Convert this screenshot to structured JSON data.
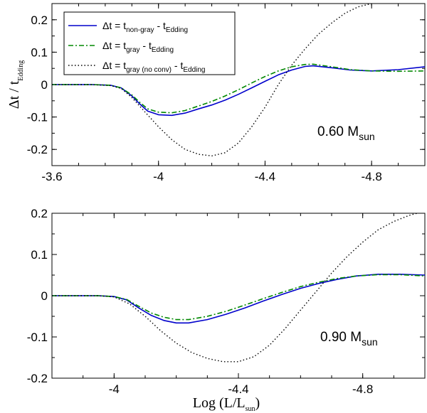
{
  "chart_data": [
    {
      "type": "line",
      "panel": "top",
      "annotation": {
        "main": "0.60 M",
        "sub": "sun"
      },
      "ylabel": {
        "main": "Δt / t",
        "sub": "Edding"
      },
      "xlim": [
        -3.6,
        -5.0
      ],
      "ylim": [
        -0.25,
        0.25
      ],
      "xticks": [
        -3.6,
        -4.0,
        -4.4,
        -4.8
      ],
      "xtick_labels": [
        "-3.6",
        "-4",
        "-4.4",
        "-4.8"
      ],
      "yticks": [
        -0.2,
        -0.1,
        0,
        0.1,
        0.2
      ],
      "ytick_labels": [
        "-0.2",
        "-0.1",
        "0",
        "0.1",
        "0.2"
      ],
      "legend": {
        "position": "top-left",
        "entries": [
          {
            "prefix": "Δt = t",
            "sub1": "non-gray",
            "mid": " - t",
            "sub2": "Edding",
            "color": "#0000cc",
            "style": "solid"
          },
          {
            "prefix": "Δt = t",
            "sub1": "gray",
            "mid": " - t",
            "sub2": "Edding",
            "color": "#008800",
            "style": "dashdot"
          },
          {
            "prefix": "Δt = t",
            "sub1": "gray (no conv)",
            "mid": " - t",
            "sub2": "Edding",
            "color": "#000000",
            "style": "dotted"
          }
        ]
      },
      "series": [
        {
          "name": "non-gray",
          "color": "#0000cc",
          "style": "solid",
          "points": [
            [
              -3.6,
              0
            ],
            [
              -3.75,
              0
            ],
            [
              -3.82,
              -0.002
            ],
            [
              -3.86,
              -0.01
            ],
            [
              -3.9,
              -0.035
            ],
            [
              -3.93,
              -0.06
            ],
            [
              -3.96,
              -0.082
            ],
            [
              -4.0,
              -0.093
            ],
            [
              -4.05,
              -0.095
            ],
            [
              -4.1,
              -0.088
            ],
            [
              -4.15,
              -0.075
            ],
            [
              -4.2,
              -0.063
            ],
            [
              -4.25,
              -0.048
            ],
            [
              -4.3,
              -0.03
            ],
            [
              -4.35,
              -0.01
            ],
            [
              -4.4,
              0.01
            ],
            [
              -4.45,
              0.03
            ],
            [
              -4.5,
              0.045
            ],
            [
              -4.55,
              0.056
            ],
            [
              -4.58,
              0.058
            ],
            [
              -4.65,
              0.052
            ],
            [
              -4.72,
              0.045
            ],
            [
              -4.8,
              0.042
            ],
            [
              -4.9,
              0.046
            ],
            [
              -5.0,
              0.055
            ]
          ]
        },
        {
          "name": "gray",
          "color": "#008800",
          "style": "dashdot",
          "points": [
            [
              -3.6,
              0
            ],
            [
              -3.75,
              0
            ],
            [
              -3.82,
              -0.002
            ],
            [
              -3.86,
              -0.01
            ],
            [
              -3.9,
              -0.032
            ],
            [
              -3.93,
              -0.055
            ],
            [
              -3.96,
              -0.075
            ],
            [
              -4.0,
              -0.085
            ],
            [
              -4.05,
              -0.087
            ],
            [
              -4.1,
              -0.08
            ],
            [
              -4.15,
              -0.066
            ],
            [
              -4.2,
              -0.052
            ],
            [
              -4.25,
              -0.035
            ],
            [
              -4.3,
              -0.016
            ],
            [
              -4.35,
              0.005
            ],
            [
              -4.4,
              0.025
            ],
            [
              -4.45,
              0.042
            ],
            [
              -4.5,
              0.055
            ],
            [
              -4.55,
              0.062
            ],
            [
              -4.58,
              0.063
            ],
            [
              -4.65,
              0.055
            ],
            [
              -4.72,
              0.046
            ],
            [
              -4.8,
              0.042
            ],
            [
              -4.9,
              0.041
            ],
            [
              -5.0,
              0.042
            ]
          ]
        },
        {
          "name": "gray (no conv)",
          "color": "#000000",
          "style": "dotted",
          "points": [
            [
              -3.6,
              0
            ],
            [
              -3.75,
              0
            ],
            [
              -3.82,
              -0.003
            ],
            [
              -3.86,
              -0.012
            ],
            [
              -3.9,
              -0.04
            ],
            [
              -3.95,
              -0.085
            ],
            [
              -4.0,
              -0.13
            ],
            [
              -4.05,
              -0.17
            ],
            [
              -4.1,
              -0.2
            ],
            [
              -4.15,
              -0.215
            ],
            [
              -4.2,
              -0.22
            ],
            [
              -4.25,
              -0.21
            ],
            [
              -4.3,
              -0.18
            ],
            [
              -4.35,
              -0.13
            ],
            [
              -4.4,
              -0.07
            ],
            [
              -4.45,
              0.0
            ],
            [
              -4.5,
              0.06
            ],
            [
              -4.55,
              0.11
            ],
            [
              -4.6,
              0.155
            ],
            [
              -4.65,
              0.19
            ],
            [
              -4.7,
              0.22
            ],
            [
              -4.75,
              0.24
            ],
            [
              -4.8,
              0.25
            ]
          ]
        }
      ]
    },
    {
      "type": "line",
      "panel": "bottom",
      "annotation": {
        "main": "0.90 M",
        "sub": "sun"
      },
      "xlabel": {
        "main": "Log (L/L",
        "sub": "sun",
        "end": ")"
      },
      "xlim": [
        -3.8,
        -5.0
      ],
      "ylim": [
        -0.2,
        0.2
      ],
      "xticks": [
        -4.0,
        -4.4,
        -4.8
      ],
      "xtick_labels": [
        "-4",
        "-4.4",
        "-4.8"
      ],
      "yticks": [
        -0.2,
        -0.1,
        0,
        0.1,
        0.2
      ],
      "ytick_labels": [
        "-0.2",
        "-0.1",
        "0",
        "0.1",
        "0.2"
      ],
      "series": [
        {
          "name": "non-gray",
          "color": "#0000cc",
          "style": "solid",
          "points": [
            [
              -3.8,
              0
            ],
            [
              -3.95,
              0
            ],
            [
              -4.0,
              -0.002
            ],
            [
              -4.04,
              -0.01
            ],
            [
              -4.08,
              -0.03
            ],
            [
              -4.12,
              -0.048
            ],
            [
              -4.16,
              -0.06
            ],
            [
              -4.2,
              -0.066
            ],
            [
              -4.24,
              -0.066
            ],
            [
              -4.3,
              -0.058
            ],
            [
              -4.36,
              -0.045
            ],
            [
              -4.42,
              -0.03
            ],
            [
              -4.48,
              -0.013
            ],
            [
              -4.54,
              0.003
            ],
            [
              -4.6,
              0.018
            ],
            [
              -4.66,
              0.03
            ],
            [
              -4.72,
              0.04
            ],
            [
              -4.78,
              0.048
            ],
            [
              -4.85,
              0.052
            ],
            [
              -4.92,
              0.052
            ],
            [
              -5.0,
              0.05
            ]
          ]
        },
        {
          "name": "gray",
          "color": "#008800",
          "style": "dashdot",
          "points": [
            [
              -3.8,
              0
            ],
            [
              -3.95,
              0
            ],
            [
              -4.0,
              -0.002
            ],
            [
              -4.04,
              -0.009
            ],
            [
              -4.08,
              -0.026
            ],
            [
              -4.12,
              -0.042
            ],
            [
              -4.16,
              -0.052
            ],
            [
              -4.2,
              -0.058
            ],
            [
              -4.24,
              -0.058
            ],
            [
              -4.3,
              -0.05
            ],
            [
              -4.36,
              -0.038
            ],
            [
              -4.42,
              -0.023
            ],
            [
              -4.48,
              -0.007
            ],
            [
              -4.54,
              0.008
            ],
            [
              -4.6,
              0.022
            ],
            [
              -4.66,
              0.033
            ],
            [
              -4.72,
              0.042
            ],
            [
              -4.78,
              0.048
            ],
            [
              -4.85,
              0.051
            ],
            [
              -4.92,
              0.051
            ],
            [
              -5.0,
              0.048
            ]
          ]
        },
        {
          "name": "gray (no conv)",
          "color": "#000000",
          "style": "dotted",
          "points": [
            [
              -3.8,
              0
            ],
            [
              -3.95,
              0
            ],
            [
              -4.0,
              -0.003
            ],
            [
              -4.05,
              -0.02
            ],
            [
              -4.1,
              -0.05
            ],
            [
              -4.15,
              -0.085
            ],
            [
              -4.2,
              -0.115
            ],
            [
              -4.25,
              -0.138
            ],
            [
              -4.3,
              -0.152
            ],
            [
              -4.35,
              -0.16
            ],
            [
              -4.4,
              -0.16
            ],
            [
              -4.45,
              -0.148
            ],
            [
              -4.5,
              -0.12
            ],
            [
              -4.55,
              -0.08
            ],
            [
              -4.6,
              -0.035
            ],
            [
              -4.65,
              0.01
            ],
            [
              -4.7,
              0.055
            ],
            [
              -4.75,
              0.095
            ],
            [
              -4.8,
              0.13
            ],
            [
              -4.85,
              0.16
            ],
            [
              -4.9,
              0.18
            ],
            [
              -4.95,
              0.195
            ],
            [
              -5.0,
              0.205
            ]
          ]
        }
      ]
    }
  ]
}
